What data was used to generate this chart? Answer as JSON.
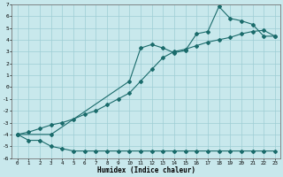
{
  "xlabel": "Humidex (Indice chaleur)",
  "bg_color": "#c8e8ec",
  "line_color": "#1a6b6b",
  "grid_color": "#9ecdd4",
  "ylim": [
    -6,
    7
  ],
  "xlim": [
    -0.5,
    23.5
  ],
  "yticks": [
    -6,
    -5,
    -4,
    -3,
    -2,
    -1,
    0,
    1,
    2,
    3,
    4,
    5,
    6,
    7
  ],
  "xticks": [
    0,
    1,
    2,
    3,
    4,
    5,
    6,
    7,
    8,
    9,
    10,
    11,
    12,
    13,
    14,
    15,
    16,
    17,
    18,
    19,
    20,
    21,
    22,
    23
  ],
  "line1_x": [
    0,
    1,
    2,
    3,
    4,
    5,
    6,
    7,
    8,
    9,
    10,
    11,
    12,
    13,
    14,
    15,
    16,
    17,
    18,
    19,
    20,
    21,
    22,
    23
  ],
  "line1_y": [
    -4.0,
    -4.5,
    -4.5,
    -5.0,
    -5.2,
    -5.4,
    -5.4,
    -5.4,
    -5.4,
    -5.4,
    -5.4,
    -5.4,
    -5.4,
    -5.4,
    -5.4,
    -5.4,
    -5.4,
    -5.4,
    -5.4,
    -5.4,
    -5.4,
    -5.4,
    -5.4,
    -5.4
  ],
  "line2_x": [
    0,
    1,
    2,
    3,
    4,
    5,
    6,
    7,
    8,
    9,
    10,
    11,
    12,
    13,
    14,
    15,
    16,
    17,
    18,
    19,
    20,
    21,
    22,
    23
  ],
  "line2_y": [
    -4.0,
    -3.8,
    -3.5,
    -3.2,
    -3.0,
    -2.7,
    -2.3,
    -2.0,
    -1.5,
    -1.0,
    -0.5,
    0.5,
    1.5,
    2.5,
    3.0,
    3.2,
    3.5,
    3.8,
    4.0,
    4.2,
    4.5,
    4.7,
    4.8,
    4.3
  ],
  "line3_x": [
    0,
    3,
    10,
    11,
    12,
    13,
    14,
    15,
    16,
    17,
    18,
    19,
    20,
    21,
    22,
    23
  ],
  "line3_y": [
    -4.0,
    -4.0,
    0.5,
    3.3,
    3.6,
    3.3,
    2.9,
    3.1,
    4.5,
    4.7,
    6.8,
    5.8,
    5.6,
    5.3,
    4.3,
    4.3
  ]
}
